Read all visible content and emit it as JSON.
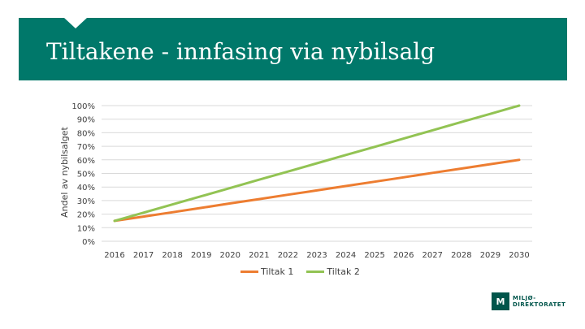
{
  "slide": {
    "title": "Tiltakene - innfasing via nybilsalg"
  },
  "logo": {
    "line1": "MILJØ-",
    "line2": "DIREKTORATET"
  },
  "colors": {
    "header": "#00786a",
    "tiltak1": "#ed7d31",
    "tiltak2": "#92c353",
    "grid": "#d9d9d9"
  },
  "chart_data": {
    "type": "line",
    "title": "",
    "xlabel": "",
    "ylabel": "Andel av nybilsalget",
    "x": [
      "2016",
      "2017",
      "2018",
      "2019",
      "2020",
      "2021",
      "2022",
      "2023",
      "2024",
      "2025",
      "2026",
      "2027",
      "2028",
      "2029",
      "2030"
    ],
    "ylim": [
      0,
      100
    ],
    "yticks": [
      "0%",
      "10%",
      "20%",
      "30%",
      "40%",
      "50%",
      "60%",
      "70%",
      "80%",
      "90%",
      "100%"
    ],
    "grid": true,
    "legend": "bottom",
    "series": [
      {
        "name": "Tiltak 1",
        "values": [
          15,
          18.2,
          21.4,
          24.6,
          27.9,
          31.1,
          34.3,
          37.5,
          40.7,
          43.9,
          47.1,
          50.4,
          53.6,
          56.8,
          60
        ]
      },
      {
        "name": "Tiltak 2",
        "values": [
          15,
          21.1,
          27.1,
          33.2,
          39.3,
          45.4,
          51.4,
          57.5,
          63.6,
          69.6,
          75.7,
          81.8,
          87.9,
          93.9,
          100
        ]
      }
    ]
  }
}
